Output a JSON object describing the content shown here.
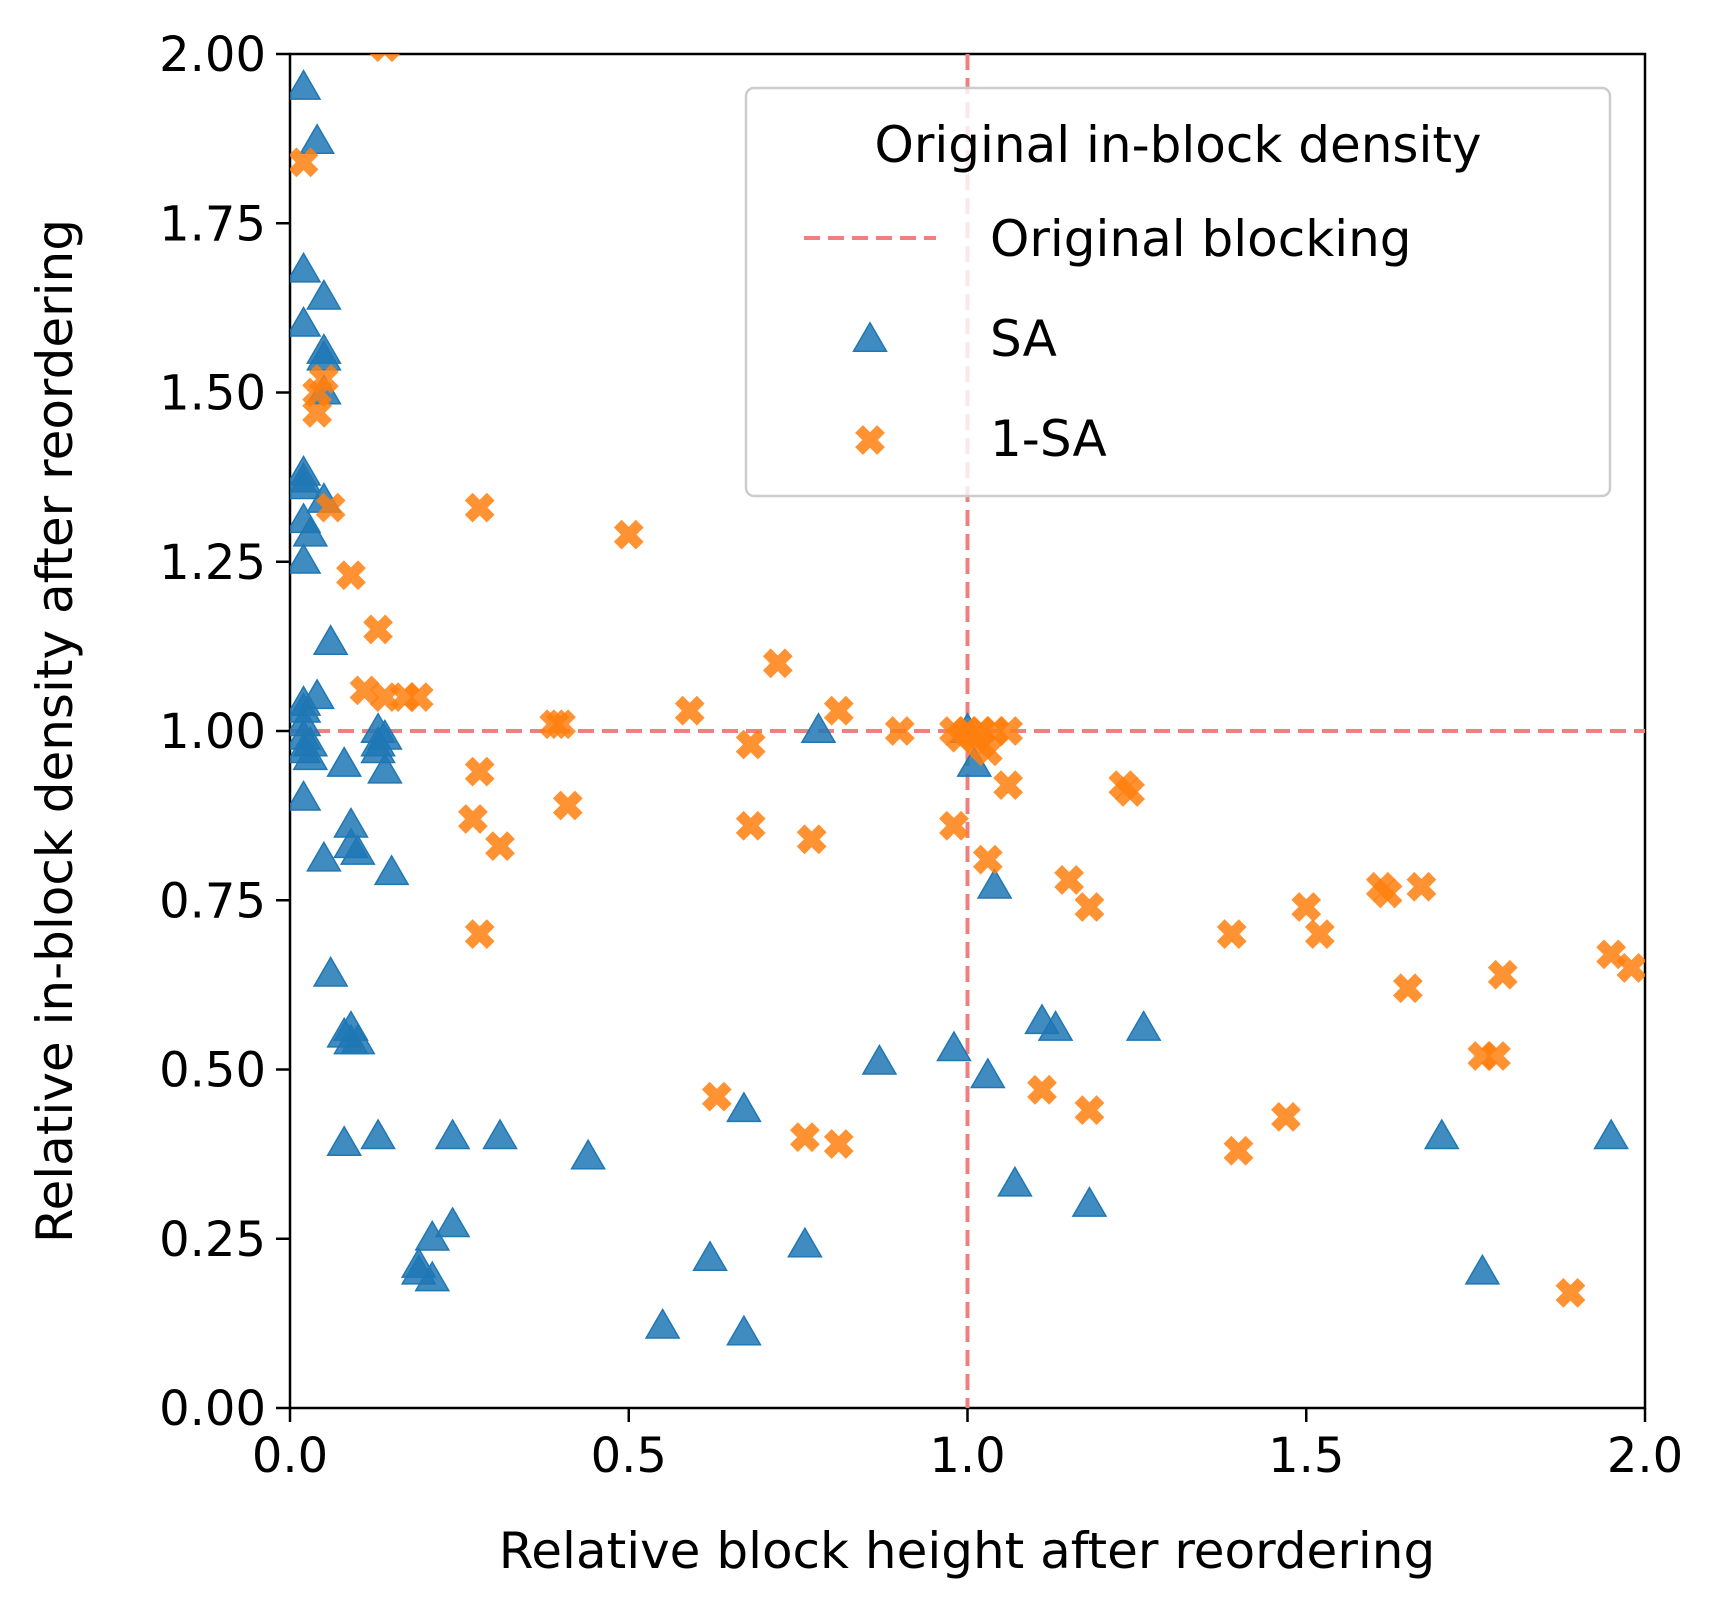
{
  "chart_data": {
    "type": "scatter",
    "xlabel": "Relative block height after reordering",
    "ylabel": "Relative in-block density after reordering",
    "xlim": [
      0.0,
      2.0
    ],
    "ylim": [
      0.0,
      2.0
    ],
    "x_ticks": [
      "0.0",
      "0.5",
      "1.0",
      "1.5",
      "2.0"
    ],
    "y_ticks": [
      "0.00",
      "0.25",
      "0.50",
      "0.75",
      "1.00",
      "1.25",
      "1.50",
      "1.75",
      "2.00"
    ],
    "grid": false,
    "legend": {
      "title": "Original in-block density",
      "position": "top-right",
      "entries": [
        "Original blocking",
        "SA",
        "1-SA"
      ]
    },
    "colors": {
      "sa": "#1f77b4",
      "one_sa": "#ff7f0e",
      "reference": "#f08080"
    },
    "reference_lines": {
      "name": "Original blocking",
      "x": 1.0,
      "y": 1.0
    },
    "series": [
      {
        "name": "SA",
        "marker": "triangle",
        "points": [
          [
            0.02,
            1.95
          ],
          [
            0.04,
            1.87
          ],
          [
            0.02,
            1.68
          ],
          [
            0.05,
            1.64
          ],
          [
            0.02,
            1.6
          ],
          [
            0.05,
            1.56
          ],
          [
            0.05,
            1.55
          ],
          [
            0.05,
            1.5
          ],
          [
            0.02,
            1.38
          ],
          [
            0.02,
            1.37
          ],
          [
            0.02,
            1.36
          ],
          [
            0.05,
            1.34
          ],
          [
            0.02,
            1.31
          ],
          [
            0.03,
            1.29
          ],
          [
            0.02,
            1.25
          ],
          [
            0.06,
            1.13
          ],
          [
            0.04,
            1.05
          ],
          [
            0.02,
            1.04
          ],
          [
            0.02,
            1.03
          ],
          [
            0.02,
            1.01
          ],
          [
            0.02,
            0.99
          ],
          [
            0.03,
            0.98
          ],
          [
            0.02,
            0.97
          ],
          [
            0.03,
            0.96
          ],
          [
            0.02,
            0.9
          ],
          [
            0.08,
            0.95
          ],
          [
            0.09,
            0.86
          ],
          [
            0.09,
            0.83
          ],
          [
            0.05,
            0.81
          ],
          [
            0.1,
            0.82
          ],
          [
            0.13,
            1.0
          ],
          [
            0.13,
            0.98
          ],
          [
            0.14,
            0.99
          ],
          [
            0.13,
            0.97
          ],
          [
            0.14,
            0.94
          ],
          [
            0.15,
            0.79
          ],
          [
            0.06,
            0.64
          ],
          [
            0.08,
            0.55
          ],
          [
            0.09,
            0.56
          ],
          [
            0.09,
            0.54
          ],
          [
            0.1,
            0.54
          ],
          [
            0.08,
            0.39
          ],
          [
            0.13,
            0.4
          ],
          [
            0.24,
            0.4
          ],
          [
            0.31,
            0.4
          ],
          [
            0.24,
            0.27
          ],
          [
            0.21,
            0.25
          ],
          [
            0.19,
            0.21
          ],
          [
            0.19,
            0.2
          ],
          [
            0.21,
            0.19
          ],
          [
            0.44,
            0.37
          ],
          [
            0.55,
            0.12
          ],
          [
            0.62,
            0.22
          ],
          [
            0.67,
            0.44
          ],
          [
            0.67,
            0.11
          ],
          [
            0.76,
            0.24
          ],
          [
            0.78,
            1.0
          ],
          [
            0.87,
            0.51
          ],
          [
            0.98,
            0.53
          ],
          [
            1.0,
            1.0
          ],
          [
            1.01,
            0.95
          ],
          [
            1.03,
            0.49
          ],
          [
            1.04,
            0.77
          ],
          [
            1.07,
            0.33
          ],
          [
            1.11,
            0.57
          ],
          [
            1.13,
            0.56
          ],
          [
            1.18,
            0.3
          ],
          [
            1.26,
            0.56
          ],
          [
            1.7,
            0.4
          ],
          [
            1.76,
            0.2
          ],
          [
            1.95,
            0.4
          ]
        ]
      },
      {
        "name": "1-SA",
        "marker": "x",
        "points": [
          [
            0.14,
            2.01
          ],
          [
            0.02,
            1.84
          ],
          [
            0.05,
            1.52
          ],
          [
            0.04,
            1.5
          ],
          [
            0.04,
            1.47
          ],
          [
            0.06,
            1.33
          ],
          [
            0.28,
            1.33
          ],
          [
            0.5,
            1.29
          ],
          [
            0.09,
            1.23
          ],
          [
            0.13,
            1.15
          ],
          [
            0.11,
            1.06
          ],
          [
            0.14,
            1.05
          ],
          [
            0.17,
            1.05
          ],
          [
            0.19,
            1.05
          ],
          [
            0.39,
            1.01
          ],
          [
            0.4,
            1.01
          ],
          [
            0.59,
            1.03
          ],
          [
            0.72,
            1.1
          ],
          [
            0.81,
            1.03
          ],
          [
            0.9,
            1.0
          ],
          [
            0.98,
            1.0
          ],
          [
            0.99,
            0.99
          ],
          [
            1.0,
            1.0
          ],
          [
            1.01,
            0.99
          ],
          [
            1.02,
            1.0
          ],
          [
            1.02,
            0.98
          ],
          [
            1.03,
            0.97
          ],
          [
            1.04,
            1.0
          ],
          [
            1.06,
            1.0
          ],
          [
            0.68,
            0.98
          ],
          [
            0.28,
            0.94
          ],
          [
            0.41,
            0.89
          ],
          [
            0.27,
            0.87
          ],
          [
            0.31,
            0.83
          ],
          [
            0.68,
            0.86
          ],
          [
            0.77,
            0.84
          ],
          [
            0.98,
            0.86
          ],
          [
            1.03,
            0.81
          ],
          [
            1.06,
            0.92
          ],
          [
            1.23,
            0.92
          ],
          [
            1.24,
            0.91
          ],
          [
            1.15,
            0.78
          ],
          [
            1.18,
            0.74
          ],
          [
            0.28,
            0.7
          ],
          [
            1.39,
            0.7
          ],
          [
            1.5,
            0.74
          ],
          [
            1.52,
            0.7
          ],
          [
            1.61,
            0.77
          ],
          [
            1.62,
            0.76
          ],
          [
            1.67,
            0.77
          ],
          [
            1.65,
            0.62
          ],
          [
            1.79,
            0.64
          ],
          [
            1.76,
            0.52
          ],
          [
            1.78,
            0.52
          ],
          [
            1.95,
            0.67
          ],
          [
            1.98,
            0.65
          ],
          [
            0.63,
            0.46
          ],
          [
            0.76,
            0.4
          ],
          [
            0.81,
            0.39
          ],
          [
            1.11,
            0.47
          ],
          [
            1.18,
            0.44
          ],
          [
            1.4,
            0.38
          ],
          [
            1.47,
            0.43
          ],
          [
            1.89,
            0.17
          ]
        ]
      }
    ]
  }
}
